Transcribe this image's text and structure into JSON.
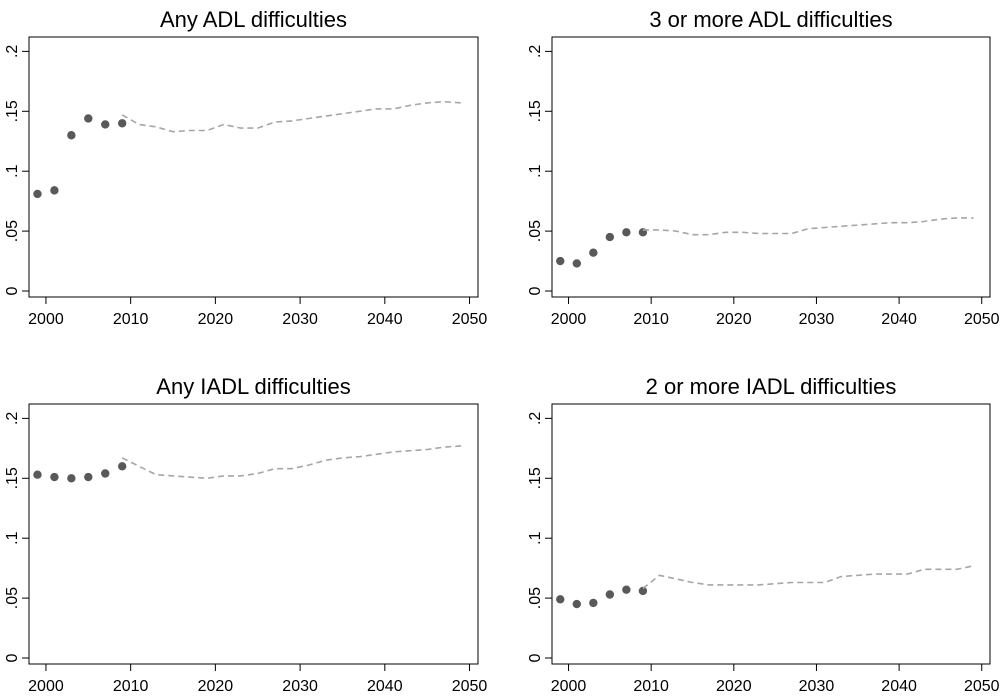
{
  "chart_data": [
    {
      "type": "scatter",
      "title": "Any ADL difficulties",
      "xlim": [
        1998,
        2051
      ],
      "ylim": [
        -0.005,
        0.212
      ],
      "xticks": [
        2000,
        2010,
        2020,
        2030,
        2040,
        2050
      ],
      "yticks": [
        {
          "value": 0,
          "label": "0"
        },
        {
          "value": 0.05,
          "label": ".05"
        },
        {
          "value": 0.1,
          "label": ".1"
        },
        {
          "value": 0.15,
          "label": ".15"
        },
        {
          "value": 0.2,
          "label": ".2"
        }
      ],
      "grid": false,
      "series": [
        {
          "mark": "dots",
          "color": "#595959",
          "x": [
            1999,
            2001,
            2003,
            2005,
            2007,
            2009
          ],
          "y": [
            0.081,
            0.084,
            0.13,
            0.144,
            0.139,
            0.14
          ]
        },
        {
          "mark": "dashed-line",
          "color": "#a6a6a6",
          "x": [
            2009,
            2011,
            2013,
            2015,
            2017,
            2019,
            2021,
            2023,
            2025,
            2027,
            2029,
            2031,
            2033,
            2035,
            2037,
            2039,
            2041,
            2043,
            2045,
            2047,
            2049
          ],
          "y": [
            0.147,
            0.139,
            0.137,
            0.133,
            0.134,
            0.134,
            0.139,
            0.136,
            0.136,
            0.141,
            0.142,
            0.144,
            0.146,
            0.148,
            0.15,
            0.152,
            0.152,
            0.155,
            0.157,
            0.158,
            0.157
          ]
        }
      ]
    },
    {
      "type": "scatter",
      "title": "3 or more ADL difficulties",
      "xlim": [
        1998,
        2051
      ],
      "ylim": [
        -0.005,
        0.212
      ],
      "xticks": [
        2000,
        2010,
        2020,
        2030,
        2040,
        2050
      ],
      "yticks": [
        {
          "value": 0,
          "label": "0"
        },
        {
          "value": 0.05,
          "label": ".05"
        },
        {
          "value": 0.1,
          "label": ".1"
        },
        {
          "value": 0.15,
          "label": ".15"
        },
        {
          "value": 0.2,
          "label": ".2"
        }
      ],
      "grid": false,
      "series": [
        {
          "mark": "dots",
          "color": "#595959",
          "x": [
            1999,
            2001,
            2003,
            2005,
            2007,
            2009
          ],
          "y": [
            0.025,
            0.023,
            0.032,
            0.045,
            0.049,
            0.049
          ]
        },
        {
          "mark": "dashed-line",
          "color": "#a6a6a6",
          "x": [
            2009,
            2011,
            2013,
            2015,
            2017,
            2019,
            2021,
            2023,
            2025,
            2027,
            2029,
            2031,
            2033,
            2035,
            2037,
            2039,
            2041,
            2043,
            2045,
            2047,
            2049
          ],
          "y": [
            0.051,
            0.051,
            0.05,
            0.047,
            0.047,
            0.049,
            0.049,
            0.048,
            0.048,
            0.048,
            0.052,
            0.053,
            0.054,
            0.055,
            0.056,
            0.057,
            0.057,
            0.058,
            0.06,
            0.061,
            0.061
          ]
        }
      ]
    },
    {
      "type": "scatter",
      "title": "Any IADL difficulties",
      "xlim": [
        1998,
        2051
      ],
      "ylim": [
        -0.005,
        0.212
      ],
      "xticks": [
        2000,
        2010,
        2020,
        2030,
        2040,
        2050
      ],
      "yticks": [
        {
          "value": 0,
          "label": "0"
        },
        {
          "value": 0.05,
          "label": ".05"
        },
        {
          "value": 0.1,
          "label": ".1"
        },
        {
          "value": 0.15,
          "label": ".15"
        },
        {
          "value": 0.2,
          "label": ".2"
        }
      ],
      "grid": false,
      "series": [
        {
          "mark": "dots",
          "color": "#595959",
          "x": [
            1999,
            2001,
            2003,
            2005,
            2007,
            2009
          ],
          "y": [
            0.153,
            0.151,
            0.15,
            0.151,
            0.154,
            0.16
          ]
        },
        {
          "mark": "dashed-line",
          "color": "#a6a6a6",
          "x": [
            2009,
            2011,
            2013,
            2015,
            2017,
            2019,
            2021,
            2023,
            2025,
            2027,
            2029,
            2031,
            2033,
            2035,
            2037,
            2039,
            2041,
            2043,
            2045,
            2047,
            2049
          ],
          "y": [
            0.167,
            0.16,
            0.153,
            0.152,
            0.151,
            0.15,
            0.152,
            0.152,
            0.154,
            0.158,
            0.158,
            0.161,
            0.165,
            0.167,
            0.168,
            0.17,
            0.172,
            0.173,
            0.174,
            0.176,
            0.177
          ]
        }
      ]
    },
    {
      "type": "scatter",
      "title": "2 or more IADL difficulties",
      "xlim": [
        1998,
        2051
      ],
      "ylim": [
        -0.005,
        0.212
      ],
      "xticks": [
        2000,
        2010,
        2020,
        2030,
        2040,
        2050
      ],
      "yticks": [
        {
          "value": 0,
          "label": "0"
        },
        {
          "value": 0.05,
          "label": ".05"
        },
        {
          "value": 0.1,
          "label": ".1"
        },
        {
          "value": 0.15,
          "label": ".15"
        },
        {
          "value": 0.2,
          "label": ".2"
        }
      ],
      "grid": false,
      "series": [
        {
          "mark": "dots",
          "color": "#595959",
          "x": [
            1999,
            2001,
            2003,
            2005,
            2007,
            2009
          ],
          "y": [
            0.049,
            0.045,
            0.046,
            0.053,
            0.057,
            0.056
          ]
        },
        {
          "mark": "dashed-line",
          "color": "#a6a6a6",
          "x": [
            2009,
            2011,
            2013,
            2015,
            2017,
            2019,
            2021,
            2023,
            2025,
            2027,
            2029,
            2031,
            2033,
            2035,
            2037,
            2039,
            2041,
            2043,
            2045,
            2047,
            2049
          ],
          "y": [
            0.058,
            0.069,
            0.066,
            0.063,
            0.061,
            0.061,
            0.061,
            0.061,
            0.062,
            0.063,
            0.063,
            0.063,
            0.068,
            0.069,
            0.07,
            0.07,
            0.07,
            0.074,
            0.074,
            0.074,
            0.077
          ]
        }
      ]
    }
  ]
}
